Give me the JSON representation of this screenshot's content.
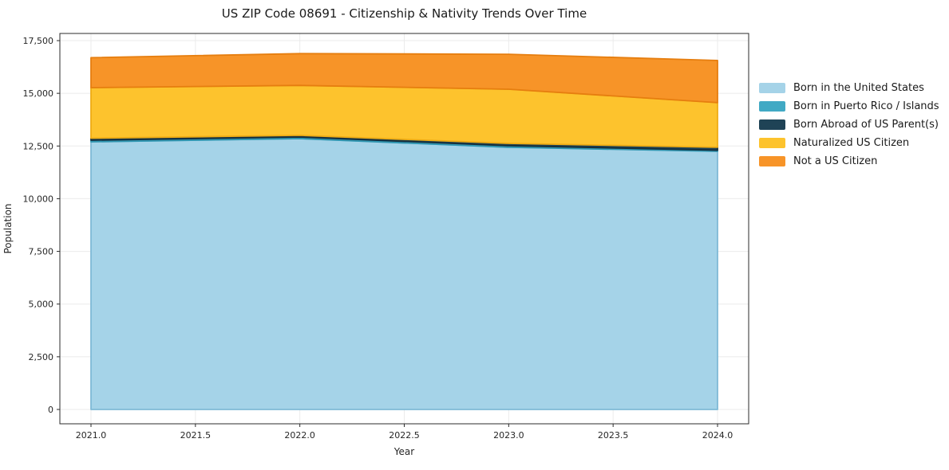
{
  "chart_data": {
    "type": "area",
    "stacked": true,
    "title": "US ZIP Code 08691 - Citizenship & Nativity Trends Over Time",
    "xlabel": "Year",
    "ylabel": "Population",
    "grid": true,
    "legend_position": "right-outside",
    "x": [
      2021,
      2022,
      2023,
      2024
    ],
    "series": [
      {
        "name": "Born in the United States",
        "color": "#A5D3E8",
        "edge": "#7FBAD6",
        "values": [
          12700,
          12850,
          12440,
          12250
        ]
      },
      {
        "name": "Born in Puerto Rico / Islands",
        "color": "#41A9C4",
        "edge": "#2E95B0",
        "values": [
          75,
          75,
          75,
          50
        ]
      },
      {
        "name": "Born Abroad of US Parent(s)",
        "color": "#1F4356",
        "edge": "#152E3C",
        "values": [
          95,
          80,
          110,
          140
        ]
      },
      {
        "name": "Naturalized US Citizen",
        "color": "#FDC32D",
        "edge": "#EFAC14",
        "values": [
          2400,
          2370,
          2570,
          2120
        ]
      },
      {
        "name": "Not a US Citizen",
        "color": "#F79428",
        "edge": "#E67E0F",
        "values": [
          1420,
          1510,
          1660,
          2000
        ]
      }
    ],
    "xlim": [
      2020.85,
      2024.15
    ],
    "ylim": [
      0,
      17500
    ],
    "xticks": {
      "values": [
        2021.0,
        2021.5,
        2022.0,
        2022.5,
        2023.0,
        2023.5,
        2024.0
      ],
      "labels": [
        "2021.0",
        "2021.5",
        "2022.0",
        "2022.5",
        "2023.0",
        "2023.5",
        "2024.0"
      ]
    },
    "yticks": {
      "values": [
        0,
        2500,
        5000,
        7500,
        10000,
        12500,
        15000,
        17500
      ],
      "labels": [
        "0",
        "2,500",
        "5,000",
        "7,500",
        "10,000",
        "12,500",
        "15,000",
        "17,500"
      ]
    }
  }
}
